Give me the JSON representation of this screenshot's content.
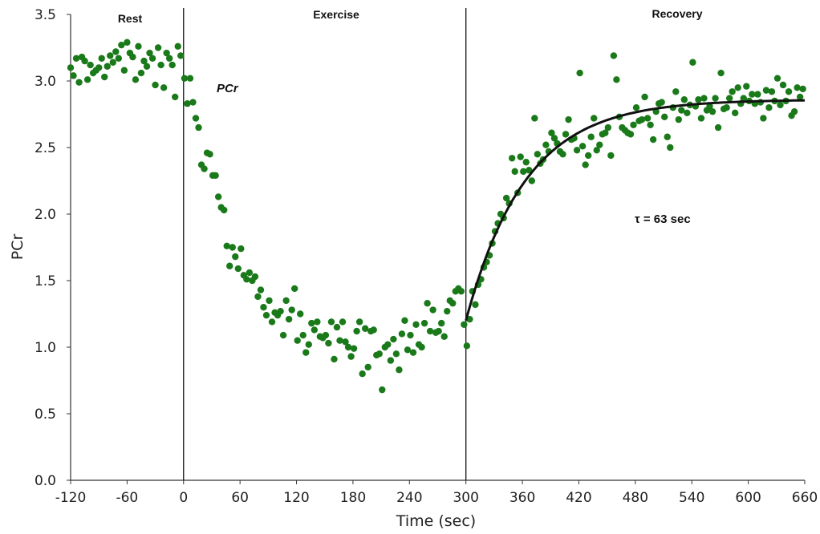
{
  "chart_data": {
    "type": "scatter",
    "title": "",
    "xlabel": "Time (sec)",
    "ylabel": "PCr",
    "xlim": [
      -120,
      660
    ],
    "ylim": [
      0,
      3.5
    ],
    "x_ticks": [
      -120,
      -60,
      0,
      60,
      120,
      180,
      240,
      300,
      360,
      420,
      480,
      540,
      600,
      660
    ],
    "y_ticks": [
      "0.0",
      "0.5",
      "1.0",
      "1.5",
      "2.0",
      "2.5",
      "3.0",
      "3.5"
    ],
    "grid": false,
    "phase_boundaries": [
      0,
      300
    ],
    "phases": [
      {
        "label": "Rest",
        "x_center": -60
      },
      {
        "label": "Exercise",
        "x_center": 165
      },
      {
        "label": "Recovery",
        "x_center": 540
      }
    ],
    "annotations": [
      {
        "text": "PCr",
        "x": 50,
        "y": 2.95,
        "style": "bold-italic"
      },
      {
        "text": "τ = 63 sec",
        "x": 500,
        "y": 1.95,
        "style": "bold"
      }
    ],
    "series": [
      {
        "color": "#1a7a1a",
        "points": [
          [
            -120,
            3.1
          ],
          [
            -117,
            3.04
          ],
          [
            -114,
            3.17
          ],
          [
            -111,
            2.99
          ],
          [
            -108,
            3.18
          ],
          [
            -105,
            3.15
          ],
          [
            -102,
            3.01
          ],
          [
            -99,
            3.12
          ],
          [
            -96,
            3.06
          ],
          [
            -93,
            3.08
          ],
          [
            -90,
            3.1
          ],
          [
            -87,
            3.17
          ],
          [
            -84,
            3.03
          ],
          [
            -81,
            3.11
          ],
          [
            -78,
            3.19
          ],
          [
            -75,
            3.14
          ],
          [
            -72,
            3.22
          ],
          [
            -69,
            3.17
          ],
          [
            -66,
            3.27
          ],
          [
            -63,
            3.08
          ],
          [
            -60,
            3.29
          ],
          [
            -57,
            3.21
          ],
          [
            -54,
            3.18
          ],
          [
            -51,
            3.01
          ],
          [
            -48,
            3.26
          ],
          [
            -45,
            3.06
          ],
          [
            -42,
            3.15
          ],
          [
            -39,
            3.11
          ],
          [
            -36,
            3.21
          ],
          [
            -33,
            3.17
          ],
          [
            -30,
            2.97
          ],
          [
            -27,
            3.25
          ],
          [
            -24,
            3.12
          ],
          [
            -21,
            2.95
          ],
          [
            -18,
            3.21
          ],
          [
            -15,
            3.17
          ],
          [
            -12,
            3.12
          ],
          [
            -9,
            2.88
          ],
          [
            -6,
            3.26
          ],
          [
            -3,
            3.19
          ],
          [
            1,
            3.02
          ],
          [
            4,
            2.83
          ],
          [
            7,
            3.02
          ],
          [
            10,
            2.84
          ],
          [
            13,
            2.72
          ],
          [
            16,
            2.65
          ],
          [
            19,
            2.37
          ],
          [
            22,
            2.34
          ],
          [
            25,
            2.46
          ],
          [
            28,
            2.45
          ],
          [
            31,
            2.29
          ],
          [
            34,
            2.29
          ],
          [
            37,
            2.13
          ],
          [
            40,
            2.05
          ],
          [
            43,
            2.03
          ],
          [
            46,
            1.76
          ],
          [
            49,
            1.61
          ],
          [
            52,
            1.75
          ],
          [
            55,
            1.68
          ],
          [
            58,
            1.59
          ],
          [
            61,
            1.74
          ],
          [
            64,
            1.54
          ],
          [
            67,
            1.51
          ],
          [
            70,
            1.56
          ],
          [
            73,
            1.5
          ],
          [
            76,
            1.53
          ],
          [
            79,
            1.38
          ],
          [
            82,
            1.43
          ],
          [
            85,
            1.3
          ],
          [
            88,
            1.24
          ],
          [
            91,
            1.35
          ],
          [
            94,
            1.19
          ],
          [
            97,
            1.26
          ],
          [
            100,
            1.24
          ],
          [
            103,
            1.27
          ],
          [
            106,
            1.09
          ],
          [
            109,
            1.35
          ],
          [
            112,
            1.21
          ],
          [
            115,
            1.28
          ],
          [
            118,
            1.44
          ],
          [
            121,
            1.05
          ],
          [
            124,
            1.25
          ],
          [
            127,
            1.09
          ],
          [
            130,
            0.96
          ],
          [
            133,
            1.02
          ],
          [
            136,
            1.18
          ],
          [
            139,
            1.13
          ],
          [
            142,
            1.19
          ],
          [
            145,
            1.08
          ],
          [
            148,
            1.07
          ],
          [
            151,
            1.09
          ],
          [
            154,
            1.03
          ],
          [
            157,
            1.19
          ],
          [
            160,
            0.91
          ],
          [
            163,
            1.15
          ],
          [
            166,
            1.05
          ],
          [
            169,
            1.19
          ],
          [
            172,
            1.04
          ],
          [
            175,
            1.0
          ],
          [
            178,
            0.93
          ],
          [
            181,
            0.99
          ],
          [
            184,
            1.12
          ],
          [
            187,
            1.19
          ],
          [
            190,
            0.8
          ],
          [
            193,
            1.14
          ],
          [
            196,
            0.85
          ],
          [
            199,
            1.12
          ],
          [
            202,
            1.13
          ],
          [
            205,
            0.94
          ],
          [
            208,
            0.95
          ],
          [
            211,
            0.68
          ],
          [
            214,
            1.0
          ],
          [
            217,
            1.02
          ],
          [
            220,
            0.9
          ],
          [
            223,
            1.06
          ],
          [
            226,
            0.95
          ],
          [
            229,
            0.83
          ],
          [
            232,
            1.1
          ],
          [
            235,
            1.2
          ],
          [
            238,
            0.98
          ],
          [
            241,
            1.09
          ],
          [
            244,
            0.96
          ],
          [
            247,
            1.17
          ],
          [
            250,
            1.02
          ],
          [
            253,
            1.0
          ],
          [
            256,
            1.18
          ],
          [
            259,
            1.33
          ],
          [
            262,
            1.12
          ],
          [
            265,
            1.28
          ],
          [
            268,
            1.11
          ],
          [
            271,
            1.12
          ],
          [
            274,
            1.18
          ],
          [
            277,
            1.08
          ],
          [
            280,
            1.27
          ],
          [
            283,
            1.35
          ],
          [
            286,
            1.33
          ],
          [
            289,
            1.42
          ],
          [
            292,
            1.44
          ],
          [
            295,
            1.42
          ],
          [
            298,
            1.17
          ],
          [
            301,
            1.01
          ],
          [
            304,
            1.21
          ],
          [
            307,
            1.42
          ],
          [
            310,
            1.32
          ],
          [
            313,
            1.47
          ],
          [
            316,
            1.51
          ],
          [
            319,
            1.6
          ],
          [
            322,
            1.64
          ],
          [
            325,
            1.69
          ],
          [
            328,
            1.78
          ],
          [
            331,
            1.87
          ],
          [
            334,
            1.93
          ],
          [
            337,
            2.0
          ],
          [
            340,
            1.97
          ],
          [
            343,
            2.12
          ],
          [
            346,
            2.08
          ],
          [
            349,
            2.42
          ],
          [
            352,
            2.32
          ],
          [
            355,
            2.16
          ],
          [
            358,
            2.43
          ],
          [
            361,
            2.32
          ],
          [
            364,
            2.39
          ],
          [
            367,
            2.33
          ],
          [
            370,
            2.25
          ],
          [
            373,
            2.72
          ],
          [
            376,
            2.45
          ],
          [
            379,
            2.38
          ],
          [
            382,
            2.41
          ],
          [
            385,
            2.52
          ],
          [
            388,
            2.47
          ],
          [
            391,
            2.61
          ],
          [
            394,
            2.57
          ],
          [
            397,
            2.53
          ],
          [
            400,
            2.47
          ],
          [
            403,
            2.45
          ],
          [
            406,
            2.6
          ],
          [
            409,
            2.71
          ],
          [
            412,
            2.56
          ],
          [
            415,
            2.57
          ],
          [
            418,
            2.48
          ],
          [
            421,
            3.06
          ],
          [
            424,
            2.51
          ],
          [
            427,
            2.37
          ],
          [
            430,
            2.44
          ],
          [
            433,
            2.58
          ],
          [
            436,
            2.72
          ],
          [
            439,
            2.48
          ],
          [
            442,
            2.52
          ],
          [
            445,
            2.6
          ],
          [
            448,
            2.61
          ],
          [
            451,
            2.65
          ],
          [
            454,
            2.44
          ],
          [
            457,
            3.19
          ],
          [
            460,
            3.01
          ],
          [
            463,
            2.73
          ],
          [
            466,
            2.65
          ],
          [
            469,
            2.63
          ],
          [
            472,
            2.61
          ],
          [
            475,
            2.6
          ],
          [
            478,
            2.67
          ],
          [
            481,
            2.8
          ],
          [
            484,
            2.7
          ],
          [
            487,
            2.71
          ],
          [
            490,
            2.88
          ],
          [
            493,
            2.72
          ],
          [
            496,
            2.67
          ],
          [
            499,
            2.56
          ],
          [
            502,
            2.77
          ],
          [
            505,
            2.83
          ],
          [
            508,
            2.84
          ],
          [
            511,
            2.73
          ],
          [
            514,
            2.58
          ],
          [
            517,
            2.5
          ],
          [
            520,
            2.8
          ],
          [
            523,
            2.92
          ],
          [
            526,
            2.71
          ],
          [
            529,
            2.78
          ],
          [
            532,
            2.86
          ],
          [
            535,
            2.76
          ],
          [
            538,
            2.82
          ],
          [
            541,
            3.14
          ],
          [
            544,
            2.81
          ],
          [
            547,
            2.86
          ],
          [
            550,
            2.72
          ],
          [
            553,
            2.87
          ],
          [
            556,
            2.78
          ],
          [
            559,
            2.81
          ],
          [
            562,
            2.77
          ],
          [
            565,
            2.87
          ],
          [
            568,
            2.65
          ],
          [
            571,
            3.06
          ],
          [
            574,
            2.79
          ],
          [
            577,
            2.8
          ],
          [
            580,
            2.87
          ],
          [
            583,
            2.92
          ],
          [
            586,
            2.76
          ],
          [
            589,
            2.95
          ],
          [
            592,
            2.83
          ],
          [
            595,
            2.87
          ],
          [
            598,
            2.96
          ],
          [
            601,
            2.85
          ],
          [
            604,
            2.9
          ],
          [
            607,
            2.83
          ],
          [
            610,
            2.9
          ],
          [
            613,
            2.84
          ],
          [
            616,
            2.72
          ],
          [
            619,
            2.93
          ],
          [
            622,
            2.8
          ],
          [
            625,
            2.92
          ],
          [
            628,
            2.85
          ],
          [
            631,
            3.02
          ],
          [
            634,
            2.82
          ],
          [
            637,
            2.97
          ],
          [
            640,
            2.85
          ],
          [
            643,
            2.92
          ],
          [
            646,
            2.74
          ],
          [
            649,
            2.77
          ],
          [
            652,
            2.95
          ],
          [
            655,
            2.88
          ],
          [
            658,
            2.94
          ]
        ]
      }
    ],
    "fit_curve": {
      "color": "#111111",
      "model": "exponential",
      "x_start": 300,
      "x_end": 660,
      "y_start": 1.2,
      "y_end": 2.86,
      "tau": 63
    }
  }
}
